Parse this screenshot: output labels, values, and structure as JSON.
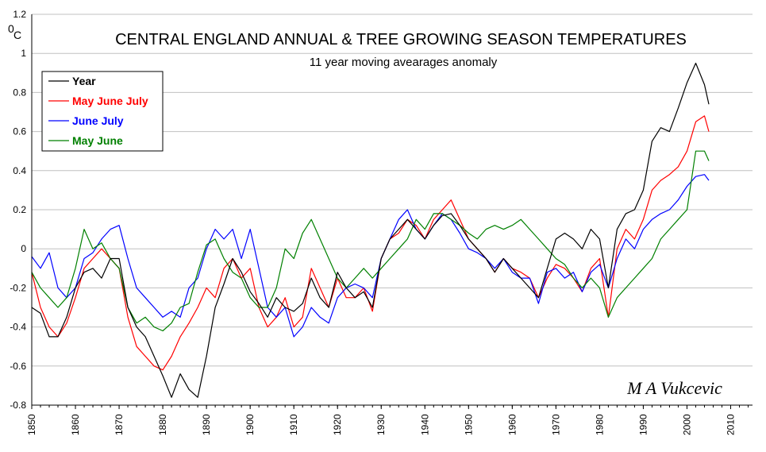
{
  "chart_data": {
    "type": "line",
    "title": "CENTRAL ENGLAND ANNUAL & TREE GROWING SEASON TEMPERATURES",
    "subtitle": "11 year moving avearages anomaly",
    "ylabel": "0C",
    "ylabel_superscript": "0",
    "ylabel_unit": "C",
    "author": "M A Vukcevic",
    "xlim": [
      1850,
      2015
    ],
    "ylim": [
      -0.8,
      1.2
    ],
    "xticks": [
      "1850",
      "1860",
      "1870",
      "1880",
      "1890",
      "1900",
      "1910",
      "1920",
      "1930",
      "1940",
      "1950",
      "1960",
      "1970",
      "1980",
      "1990",
      "2000",
      "2010"
    ],
    "yticks": [
      "1.2",
      "1",
      "0.8",
      "0.6",
      "0.4",
      "0.2",
      "0",
      "-0.2",
      "-0.4",
      "-0.6",
      "-0.8"
    ],
    "grid": true,
    "legend_position": "top-left",
    "series": [
      {
        "name": "Year",
        "color": "#000000",
        "x": [
          1850,
          1852,
          1854,
          1856,
          1858,
          1860,
          1862,
          1864,
          1866,
          1868,
          1870,
          1872,
          1874,
          1876,
          1878,
          1880,
          1882,
          1884,
          1886,
          1888,
          1890,
          1892,
          1894,
          1896,
          1898,
          1900,
          1902,
          1904,
          1906,
          1908,
          1910,
          1912,
          1914,
          1916,
          1918,
          1920,
          1922,
          1924,
          1926,
          1928,
          1930,
          1932,
          1934,
          1936,
          1938,
          1940,
          1942,
          1944,
          1946,
          1948,
          1950,
          1952,
          1954,
          1956,
          1958,
          1960,
          1962,
          1964,
          1966,
          1968,
          1970,
          1972,
          1974,
          1976,
          1978,
          1980,
          1982,
          1984,
          1986,
          1988,
          1990,
          1992,
          1994,
          1996,
          1998,
          2000,
          2002,
          2004,
          2005
        ],
        "values": [
          -0.3,
          -0.33,
          -0.45,
          -0.45,
          -0.35,
          -0.2,
          -0.12,
          -0.1,
          -0.15,
          -0.05,
          -0.05,
          -0.3,
          -0.4,
          -0.45,
          -0.55,
          -0.65,
          -0.76,
          -0.64,
          -0.72,
          -0.76,
          -0.55,
          -0.3,
          -0.18,
          -0.05,
          -0.12,
          -0.22,
          -0.28,
          -0.35,
          -0.25,
          -0.3,
          -0.32,
          -0.28,
          -0.15,
          -0.25,
          -0.3,
          -0.12,
          -0.2,
          -0.25,
          -0.22,
          -0.3,
          -0.05,
          0.05,
          0.1,
          0.15,
          0.1,
          0.05,
          0.12,
          0.17,
          0.18,
          0.12,
          0.05,
          0.0,
          -0.05,
          -0.12,
          -0.05,
          -0.1,
          -0.15,
          -0.2,
          -0.25,
          -0.1,
          0.05,
          0.08,
          0.05,
          0.0,
          0.1,
          0.05,
          -0.2,
          0.1,
          0.18,
          0.2,
          0.3,
          0.55,
          0.62,
          0.6,
          0.72,
          0.85,
          0.95,
          0.84,
          0.74
        ]
      },
      {
        "name": "May June July",
        "color": "#ff0000",
        "x": [
          1850,
          1852,
          1854,
          1856,
          1858,
          1860,
          1862,
          1864,
          1866,
          1868,
          1870,
          1872,
          1874,
          1876,
          1878,
          1880,
          1882,
          1884,
          1886,
          1888,
          1890,
          1892,
          1894,
          1896,
          1898,
          1900,
          1902,
          1904,
          1906,
          1908,
          1910,
          1912,
          1914,
          1916,
          1918,
          1920,
          1922,
          1924,
          1926,
          1928,
          1930,
          1932,
          1934,
          1936,
          1938,
          1940,
          1942,
          1944,
          1946,
          1948,
          1950,
          1952,
          1954,
          1956,
          1958,
          1960,
          1962,
          1964,
          1966,
          1968,
          1970,
          1972,
          1974,
          1976,
          1978,
          1980,
          1982,
          1984,
          1986,
          1988,
          1990,
          1992,
          1994,
          1996,
          1998,
          2000,
          2002,
          2004,
          2005
        ],
        "values": [
          -0.12,
          -0.3,
          -0.4,
          -0.45,
          -0.38,
          -0.25,
          -0.1,
          -0.05,
          0.0,
          -0.05,
          -0.1,
          -0.35,
          -0.5,
          -0.55,
          -0.6,
          -0.62,
          -0.55,
          -0.45,
          -0.38,
          -0.3,
          -0.2,
          -0.25,
          -0.1,
          -0.05,
          -0.15,
          -0.1,
          -0.3,
          -0.4,
          -0.35,
          -0.25,
          -0.4,
          -0.35,
          -0.1,
          -0.2,
          -0.3,
          -0.15,
          -0.25,
          -0.25,
          -0.2,
          -0.32,
          -0.05,
          0.05,
          0.08,
          0.15,
          0.12,
          0.05,
          0.15,
          0.2,
          0.25,
          0.15,
          0.05,
          0.0,
          -0.05,
          -0.12,
          -0.05,
          -0.1,
          -0.12,
          -0.15,
          -0.25,
          -0.15,
          -0.08,
          -0.1,
          -0.15,
          -0.22,
          -0.1,
          -0.05,
          -0.35,
          0.0,
          0.1,
          0.05,
          0.15,
          0.3,
          0.35,
          0.38,
          0.42,
          0.5,
          0.65,
          0.68,
          0.6
        ]
      },
      {
        "name": "June July",
        "color": "#0000ff",
        "x": [
          1850,
          1852,
          1854,
          1856,
          1858,
          1860,
          1862,
          1864,
          1866,
          1868,
          1870,
          1872,
          1874,
          1876,
          1878,
          1880,
          1882,
          1884,
          1886,
          1888,
          1890,
          1892,
          1894,
          1896,
          1898,
          1900,
          1902,
          1904,
          1906,
          1908,
          1910,
          1912,
          1914,
          1916,
          1918,
          1920,
          1922,
          1924,
          1926,
          1928,
          1930,
          1932,
          1934,
          1936,
          1938,
          1940,
          1942,
          1944,
          1946,
          1948,
          1950,
          1952,
          1954,
          1956,
          1958,
          1960,
          1962,
          1964,
          1966,
          1968,
          1970,
          1972,
          1974,
          1976,
          1978,
          1980,
          1982,
          1984,
          1986,
          1988,
          1990,
          1992,
          1994,
          1996,
          1998,
          2000,
          2002,
          2004,
          2005
        ],
        "values": [
          -0.04,
          -0.1,
          -0.02,
          -0.2,
          -0.25,
          -0.2,
          -0.05,
          -0.02,
          0.05,
          0.1,
          0.12,
          -0.05,
          -0.2,
          -0.25,
          -0.3,
          -0.35,
          -0.32,
          -0.35,
          -0.2,
          -0.15,
          0.0,
          0.1,
          0.05,
          0.1,
          -0.05,
          0.1,
          -0.1,
          -0.3,
          -0.35,
          -0.3,
          -0.45,
          -0.4,
          -0.3,
          -0.35,
          -0.38,
          -0.25,
          -0.2,
          -0.18,
          -0.2,
          -0.25,
          -0.05,
          0.05,
          0.15,
          0.2,
          0.1,
          0.05,
          0.12,
          0.18,
          0.15,
          0.08,
          0.0,
          -0.02,
          -0.05,
          -0.1,
          -0.05,
          -0.12,
          -0.15,
          -0.15,
          -0.28,
          -0.12,
          -0.1,
          -0.15,
          -0.12,
          -0.22,
          -0.12,
          -0.08,
          -0.2,
          -0.05,
          0.05,
          0.0,
          0.1,
          0.15,
          0.18,
          0.2,
          0.25,
          0.32,
          0.37,
          0.38,
          0.35
        ]
      },
      {
        "name": "May June",
        "color": "#008000",
        "x": [
          1850,
          1852,
          1854,
          1856,
          1858,
          1860,
          1862,
          1864,
          1866,
          1868,
          1870,
          1872,
          1874,
          1876,
          1878,
          1880,
          1882,
          1884,
          1886,
          1888,
          1890,
          1892,
          1894,
          1896,
          1898,
          1900,
          1902,
          1904,
          1906,
          1908,
          1910,
          1912,
          1914,
          1916,
          1918,
          1920,
          1922,
          1924,
          1926,
          1928,
          1930,
          1932,
          1934,
          1936,
          1938,
          1940,
          1942,
          1944,
          1946,
          1948,
          1950,
          1952,
          1954,
          1956,
          1958,
          1960,
          1962,
          1964,
          1966,
          1968,
          1970,
          1972,
          1974,
          1976,
          1978,
          1980,
          1982,
          1984,
          1986,
          1988,
          1990,
          1992,
          1994,
          1996,
          1998,
          2000,
          2002,
          2004,
          2005
        ],
        "values": [
          -0.12,
          -0.2,
          -0.25,
          -0.3,
          -0.25,
          -0.1,
          0.1,
          0.0,
          0.03,
          -0.05,
          -0.1,
          -0.3,
          -0.38,
          -0.35,
          -0.4,
          -0.42,
          -0.38,
          -0.3,
          -0.28,
          -0.12,
          0.02,
          0.05,
          -0.05,
          -0.12,
          -0.15,
          -0.25,
          -0.3,
          -0.3,
          -0.2,
          0.0,
          -0.05,
          0.08,
          0.15,
          0.05,
          -0.05,
          -0.15,
          -0.2,
          -0.15,
          -0.1,
          -0.15,
          -0.1,
          -0.05,
          0.0,
          0.05,
          0.15,
          0.1,
          0.18,
          0.18,
          0.15,
          0.12,
          0.08,
          0.05,
          0.1,
          0.12,
          0.1,
          0.12,
          0.15,
          0.1,
          0.05,
          0.0,
          -0.05,
          -0.08,
          -0.15,
          -0.2,
          -0.15,
          -0.2,
          -0.35,
          -0.25,
          -0.2,
          -0.15,
          -0.1,
          -0.05,
          0.05,
          0.1,
          0.15,
          0.2,
          0.5,
          0.5,
          0.45
        ]
      }
    ]
  }
}
